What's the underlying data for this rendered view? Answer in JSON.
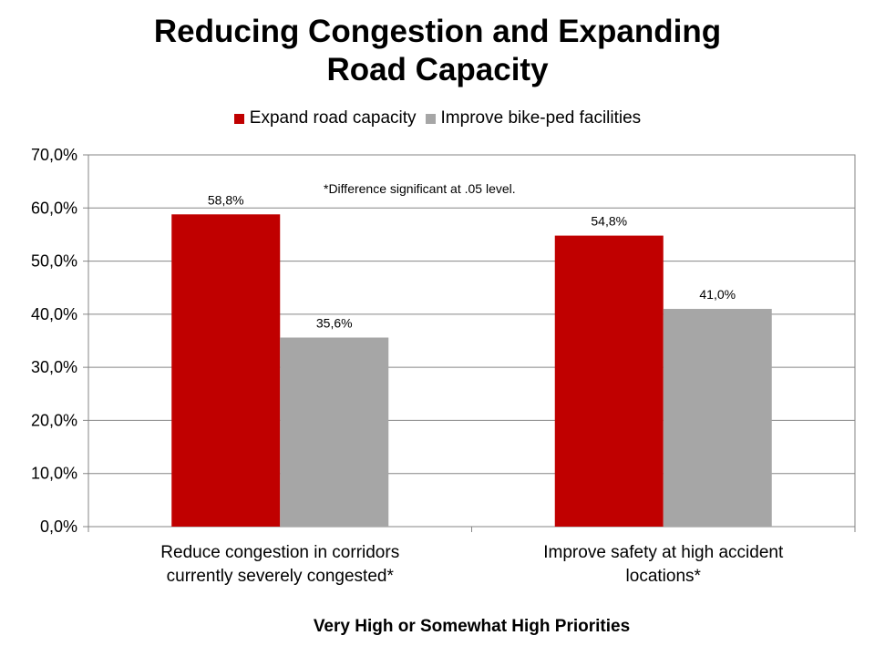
{
  "chart_data": {
    "type": "bar",
    "title_lines": [
      "Reducing Congestion and Expanding",
      "Road Capacity"
    ],
    "categories": [
      [
        "Reduce congestion in corridors",
        "currently severely congested*"
      ],
      [
        "Improve safety at high accident",
        "locations*"
      ]
    ],
    "series": [
      {
        "name": "Expand road capacity",
        "color": "#c00000",
        "values": [
          58.8,
          54.8
        ],
        "labels": [
          "58,8%",
          "54,8%"
        ]
      },
      {
        "name": "Improve bike-ped facilities",
        "color": "#a6a6a6",
        "values": [
          35.6,
          41.0
        ],
        "labels": [
          "35,6%",
          "41,0%"
        ]
      }
    ],
    "ylim": [
      0,
      70
    ],
    "yticks": [
      "0,0%",
      "10,0%",
      "20,0%",
      "30,0%",
      "40,0%",
      "50,0%",
      "60,0%",
      "70,0%"
    ],
    "xlabel": "Very High or Somewhat High Priorities",
    "ylabel": "",
    "annotation": "*Difference significant at .05 level.",
    "legend_position": "top",
    "grid": true
  }
}
